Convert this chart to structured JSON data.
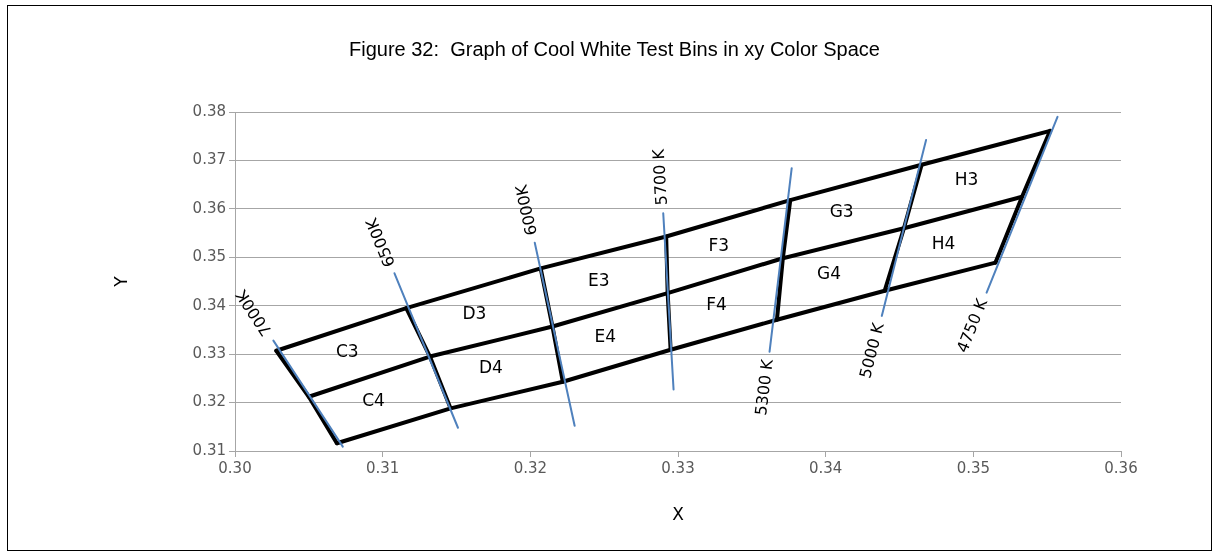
{
  "chart_data": {
    "type": "line",
    "title": "Figure 32:  Graph of Cool White Test Bins in xy Color Space",
    "xlabel": "X",
    "ylabel": "Y",
    "xlim": [
      0.3,
      0.36
    ],
    "ylim": [
      0.31,
      0.38
    ],
    "xticks": [
      {
        "value": 0.3,
        "label": "0.30"
      },
      {
        "value": 0.31,
        "label": "0.31"
      },
      {
        "value": 0.32,
        "label": "0.32"
      },
      {
        "value": 0.33,
        "label": "0.33"
      },
      {
        "value": 0.34,
        "label": "0.34"
      },
      {
        "value": 0.35,
        "label": "0.35"
      },
      {
        "value": 0.36,
        "label": "0.36"
      }
    ],
    "yticks": [
      0.31,
      0.32,
      0.33,
      0.34,
      0.35,
      0.36,
      0.37,
      0.38
    ],
    "grid": "y",
    "legend": false,
    "marker": "none",
    "series": [
      {
        "type": "line",
        "color": "#000000",
        "x": [
          0.3028,
          0.3116,
          0.3207,
          0.3292,
          0.3376,
          0.3465,
          0.3552
        ],
        "values": [
          0.3307,
          0.3395,
          0.3477,
          0.3543,
          0.3618,
          0.3691,
          0.3761
        ]
      },
      {
        "type": "line",
        "color": "#000000",
        "x": [
          0.305,
          0.3132,
          0.3215,
          0.3293,
          0.3371,
          0.3453,
          0.3533
        ],
        "values": [
          0.3212,
          0.3295,
          0.3357,
          0.3426,
          0.3498,
          0.356,
          0.3625
        ]
      },
      {
        "type": "line",
        "color": "#000000",
        "x": [
          0.3069,
          0.3146,
          0.3222,
          0.3295,
          0.3367,
          0.344,
          0.3515
        ],
        "values": [
          0.3116,
          0.3188,
          0.3243,
          0.3309,
          0.3371,
          0.3431,
          0.3489
        ]
      },
      {
        "type": "line",
        "color": "#000000",
        "x": [
          0.3069,
          0.305,
          0.3028
        ],
        "values": [
          0.3116,
          0.3212,
          0.3307
        ]
      },
      {
        "type": "line",
        "color": "#000000",
        "x": [
          0.3146,
          0.3132,
          0.3116
        ],
        "values": [
          0.3188,
          0.3295,
          0.3395
        ]
      },
      {
        "type": "line",
        "color": "#000000",
        "x": [
          0.3222,
          0.3215,
          0.3207
        ],
        "values": [
          0.3243,
          0.3357,
          0.3477
        ]
      },
      {
        "type": "line",
        "color": "#000000",
        "x": [
          0.3295,
          0.3293,
          0.3292
        ],
        "values": [
          0.3309,
          0.3426,
          0.3543
        ]
      },
      {
        "type": "line",
        "color": "#000000",
        "x": [
          0.3367,
          0.3371,
          0.3376
        ],
        "values": [
          0.3371,
          0.3498,
          0.3618
        ]
      },
      {
        "type": "line",
        "color": "#000000",
        "x": [
          0.344,
          0.3453,
          0.3465
        ],
        "values": [
          0.3431,
          0.356,
          0.3691
        ]
      },
      {
        "type": "line",
        "color": "#000000",
        "x": [
          0.3515,
          0.3533,
          0.3552
        ],
        "values": [
          0.3489,
          0.3625,
          0.3761
        ]
      },
      {
        "name": "7000K",
        "color": "#4f81bd",
        "x": [
          0.3026,
          0.3073
        ],
        "values": [
          0.3328,
          0.3109
        ]
      },
      {
        "name": "6500K",
        "color": "#4f81bd",
        "x": [
          0.3108,
          0.3151
        ],
        "values": [
          0.3467,
          0.3148
        ]
      },
      {
        "name": "6000K",
        "color": "#4f81bd",
        "x": [
          0.3203,
          0.323
        ],
        "values": [
          0.353,
          0.3152
        ]
      },
      {
        "name": "5700 K",
        "color": "#4f81bd",
        "x": [
          0.329,
          0.3297
        ],
        "values": [
          0.3591,
          0.3227
        ]
      },
      {
        "name": "5300 K",
        "color": "#4f81bd",
        "x": [
          0.3362,
          0.3377
        ],
        "values": [
          0.3305,
          0.3684
        ]
      },
      {
        "name": "5000 K",
        "color": "#4f81bd",
        "x": [
          0.3438,
          0.3468
        ],
        "values": [
          0.3379,
          0.3742
        ]
      },
      {
        "name": "4750 K",
        "color": "#4f81bd",
        "x": [
          0.3509,
          0.3557
        ],
        "values": [
          0.3427,
          0.379
        ]
      }
    ],
    "annotations": [
      "C3",
      "C4",
      "D3",
      "D4",
      "E3",
      "E4",
      "F3",
      "F4",
      "G3",
      "G4",
      "H3",
      "H4"
    ]
  }
}
